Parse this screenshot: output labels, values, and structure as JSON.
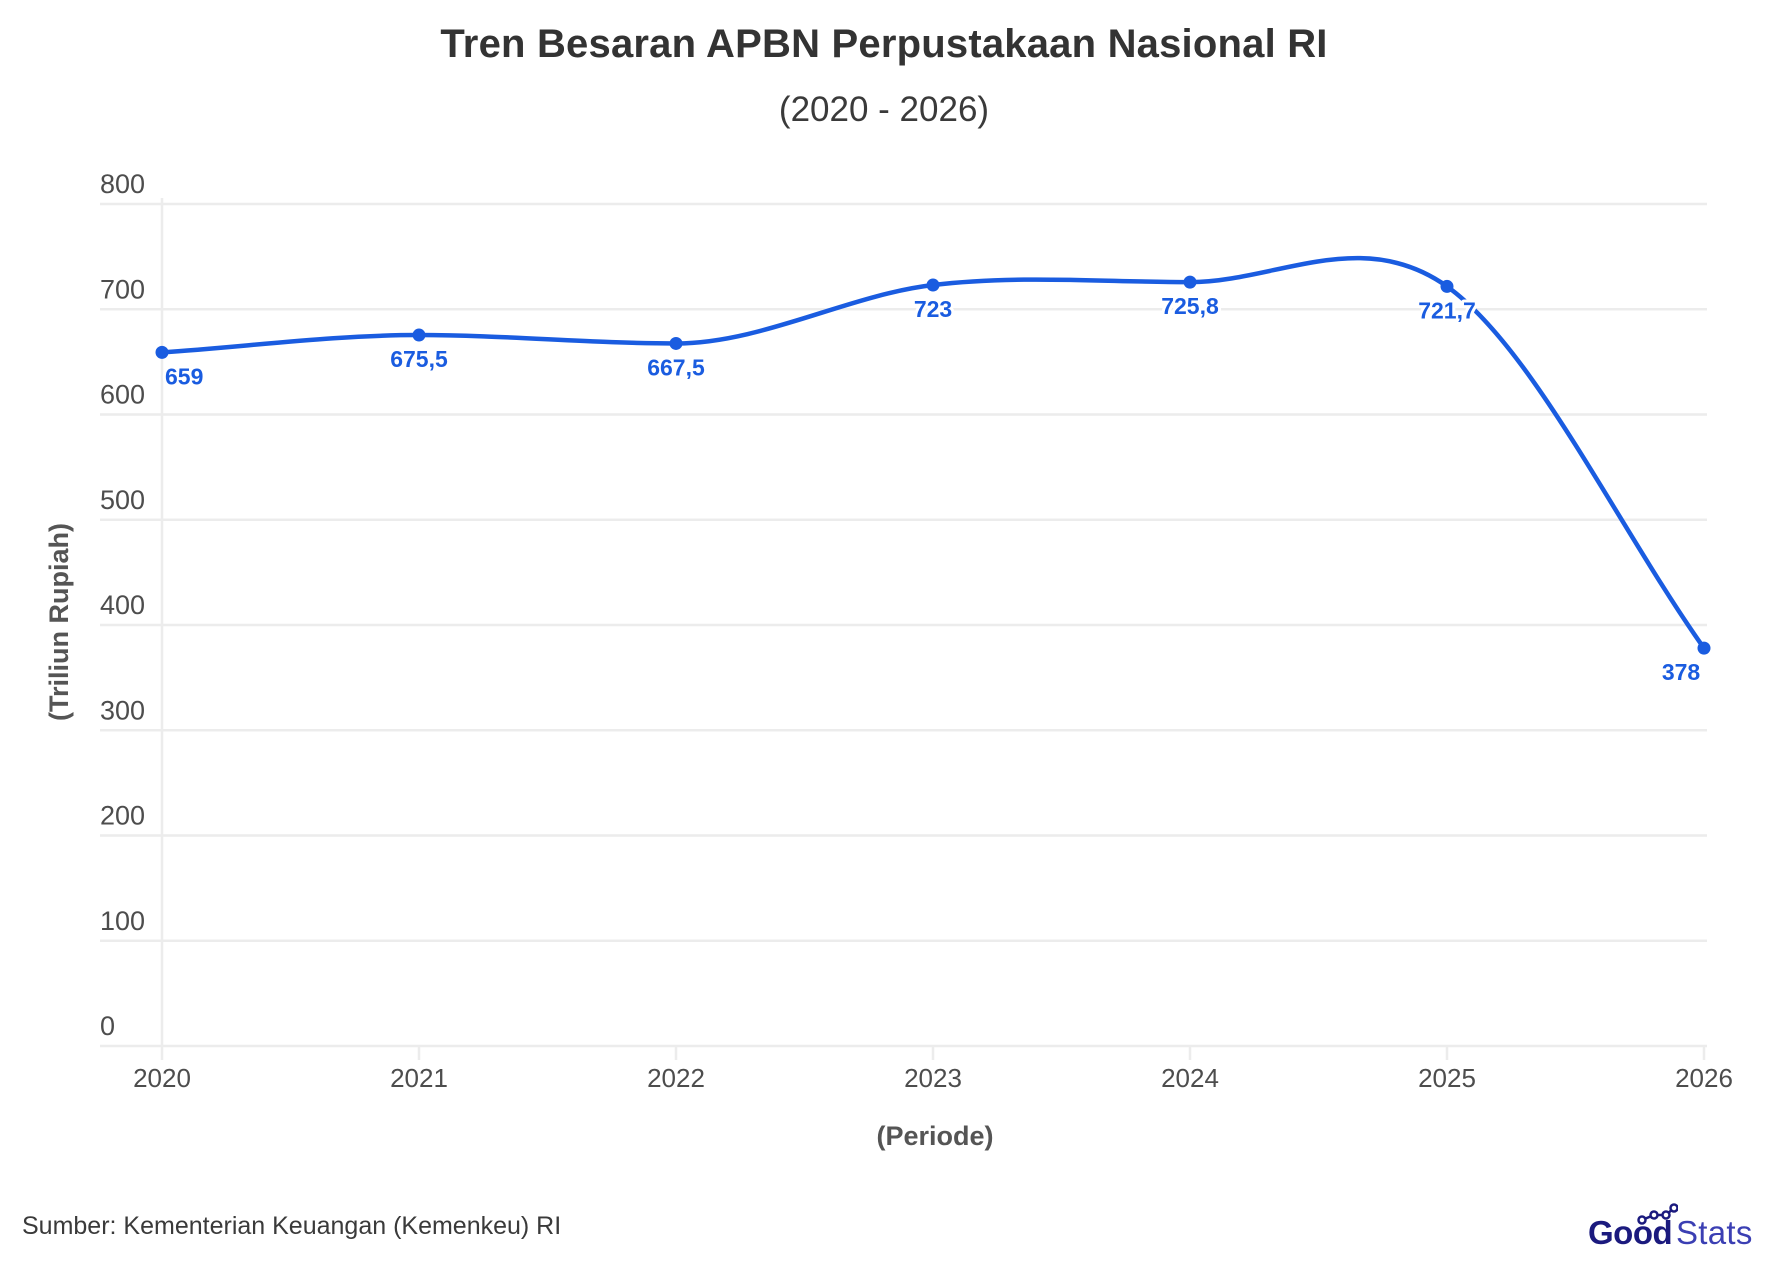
{
  "header": {
    "title": "Tren Besaran APBN Perpustakaan Nasional RI",
    "subtitle": "(2020 - 2026)"
  },
  "footer": {
    "source": "Sumber: Kementerian Keuangan (Kemenkeu) RI",
    "logo_bold": "Good",
    "logo_light": "Stats"
  },
  "colors": {
    "line": "#1a5ce0",
    "grid": "#ececec",
    "text": "#4d4d4d",
    "logo_dark": "#1b1a7e",
    "logo_light": "#3b3fb3"
  },
  "chart_data": {
    "type": "line",
    "title": "Tren Besaran APBN Perpustakaan Nasional RI",
    "subtitle": "(2020 - 2026)",
    "xlabel": "(Periode)",
    "ylabel": "(Triliun Rupiah)",
    "categories": [
      "2020",
      "2021",
      "2022",
      "2023",
      "2024",
      "2025",
      "2026"
    ],
    "values": [
      659,
      675.5,
      667.5,
      723,
      725.8,
      721.7,
      378
    ],
    "data_labels": [
      "659",
      "675,5",
      "667,5",
      "723",
      "725,8",
      "721,7",
      "378"
    ],
    "yticks": [
      "0",
      "100",
      "200",
      "300",
      "400",
      "500",
      "600",
      "700",
      "800"
    ],
    "ylim": [
      0,
      800
    ],
    "grid": true,
    "smooth": true,
    "legend": null
  }
}
